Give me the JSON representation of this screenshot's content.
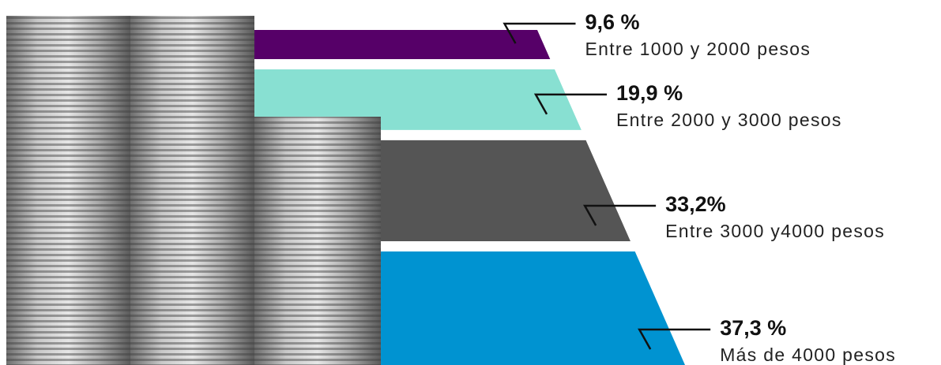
{
  "chart_data": {
    "type": "funnel",
    "categories": [
      "Entre 1000 y 2000 pesos",
      "Entre 2000 y 3000 pesos",
      "Entre 3000 y4000 pesos",
      "Más de 4000 pesos"
    ],
    "values": [
      9.6,
      19.9,
      33.2,
      37.3
    ],
    "value_labels": [
      "9,6 %",
      "19,9 %",
      "33,2%",
      "37,3 %"
    ],
    "colors": [
      "#560068",
      "#88e0d2",
      "#555555",
      "#0093d1"
    ]
  }
}
